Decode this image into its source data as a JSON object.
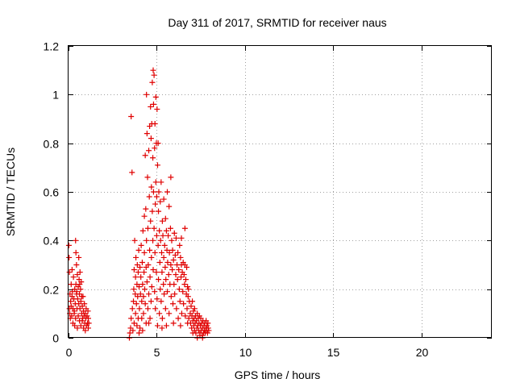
{
  "chart_data": {
    "type": "scatter",
    "title": "Day 311 of 2017, SRMTID for receiver naus",
    "xlabel": "GPS time / hours",
    "ylabel": "SRMTID / TECUs",
    "xlim": [
      0,
      24
    ],
    "ylim": [
      0,
      1.2
    ],
    "x_ticks": [
      0,
      5,
      10,
      15,
      20
    ],
    "y_ticks": [
      0,
      0.2,
      0.4,
      0.6,
      0.8,
      1,
      1.2
    ],
    "x_tick_labels": [
      "0",
      "5",
      "10",
      "15",
      "20"
    ],
    "y_tick_labels": [
      "0",
      "0.2",
      "0.4",
      "0.6",
      "0.8",
      "1",
      "1.2"
    ],
    "grid": true,
    "marker": "+",
    "series": [
      {
        "color": "#e00000",
        "points": [
          [
            0.02,
            0.38
          ],
          [
            0.03,
            0.33
          ],
          [
            0.05,
            0.27
          ],
          [
            0.05,
            0.12
          ],
          [
            0.07,
            0.1
          ],
          [
            0.08,
            0.18
          ],
          [
            0.1,
            0.08
          ],
          [
            0.12,
            0.15
          ],
          [
            0.15,
            0.22
          ],
          [
            0.15,
            0.13
          ],
          [
            0.18,
            0.09
          ],
          [
            0.2,
            0.28
          ],
          [
            0.22,
            0.19
          ],
          [
            0.25,
            0.12
          ],
          [
            0.25,
            0.06
          ],
          [
            0.28,
            0.25
          ],
          [
            0.3,
            0.16
          ],
          [
            0.32,
            0.1
          ],
          [
            0.35,
            0.2
          ],
          [
            0.35,
            0.05
          ],
          [
            0.38,
            0.14
          ],
          [
            0.4,
            0.4
          ],
          [
            0.4,
            0.08
          ],
          [
            0.42,
            0.35
          ],
          [
            0.42,
            0.22
          ],
          [
            0.45,
            0.3
          ],
          [
            0.45,
            0.18
          ],
          [
            0.48,
            0.12
          ],
          [
            0.5,
            0.26
          ],
          [
            0.5,
            0.04
          ],
          [
            0.52,
            0.16
          ],
          [
            0.55,
            0.21
          ],
          [
            0.55,
            0.09
          ],
          [
            0.58,
            0.33
          ],
          [
            0.58,
            0.14
          ],
          [
            0.6,
            0.24
          ],
          [
            0.62,
            0.18
          ],
          [
            0.62,
            0.07
          ],
          [
            0.65,
            0.27
          ],
          [
            0.65,
            0.12
          ],
          [
            0.68,
            0.2
          ],
          [
            0.7,
            0.15
          ],
          [
            0.7,
            0.05
          ],
          [
            0.72,
            0.23
          ],
          [
            0.75,
            0.17
          ],
          [
            0.75,
            0.1
          ],
          [
            0.78,
            0.13
          ],
          [
            0.8,
            0.08
          ],
          [
            0.82,
            0.17
          ],
          [
            0.85,
            0.11
          ],
          [
            0.85,
            0.04
          ],
          [
            0.88,
            0.09
          ],
          [
            0.9,
            0.14
          ],
          [
            0.92,
            0.06
          ],
          [
            0.95,
            0.1
          ],
          [
            0.95,
            0.03
          ],
          [
            0.98,
            0.08
          ],
          [
            1.0,
            0.12
          ],
          [
            1.02,
            0.05
          ],
          [
            1.05,
            0.09
          ],
          [
            1.08,
            0.06
          ],
          [
            1.1,
            0.11
          ],
          [
            1.12,
            0.04
          ],
          [
            1.12,
            0.08
          ],
          [
            1.15,
            0.06
          ],
          [
            0.2,
            0.17
          ],
          [
            0.33,
            0.11
          ],
          [
            0.47,
            0.19
          ],
          [
            0.63,
            0.22
          ],
          [
            0.78,
            0.07
          ],
          [
            3.45,
            0.0
          ],
          [
            3.48,
            0.02
          ],
          [
            3.52,
            0.04
          ],
          [
            3.55,
            0.91
          ],
          [
            3.55,
            0.08
          ],
          [
            3.6,
            0.68
          ],
          [
            3.62,
            0.12
          ],
          [
            3.65,
            0.03
          ],
          [
            3.68,
            0.15
          ],
          [
            3.7,
            0.2
          ],
          [
            3.72,
            0.28
          ],
          [
            3.72,
            0.06
          ],
          [
            3.75,
            0.4
          ],
          [
            3.78,
            0.18
          ],
          [
            3.8,
            0.25
          ],
          [
            3.8,
            0.1
          ],
          [
            3.82,
            0.33
          ],
          [
            3.85,
            0.14
          ],
          [
            3.88,
            0.22
          ],
          [
            3.88,
            0.05
          ],
          [
            3.9,
            0.3
          ],
          [
            3.92,
            0.17
          ],
          [
            3.95,
            0.27
          ],
          [
            3.95,
            0.08
          ],
          [
            3.98,
            0.36
          ],
          [
            4.0,
            0.21
          ],
          [
            4.02,
            0.12
          ],
          [
            4.05,
            0.29
          ],
          [
            4.05,
            0.04
          ],
          [
            4.08,
            0.18
          ],
          [
            4.1,
            0.25
          ],
          [
            4.12,
            0.38
          ],
          [
            4.15,
            0.15
          ],
          [
            4.15,
            0.08
          ],
          [
            4.18,
            0.31
          ],
          [
            4.2,
            0.22
          ],
          [
            4.22,
            0.44
          ],
          [
            4.25,
            0.17
          ],
          [
            4.25,
            0.1
          ],
          [
            4.28,
            0.27
          ],
          [
            4.3,
            0.5
          ],
          [
            4.3,
            0.35
          ],
          [
            4.32,
            0.2
          ],
          [
            4.35,
            0.75
          ],
          [
            4.35,
            0.14
          ],
          [
            4.38,
            0.53
          ],
          [
            4.4,
            0.29
          ],
          [
            4.4,
            0.06
          ],
          [
            4.42,
            1.0
          ],
          [
            4.42,
            0.4
          ],
          [
            4.45,
            0.84
          ],
          [
            4.45,
            0.23
          ],
          [
            4.48,
            0.66
          ],
          [
            4.5,
            0.45
          ],
          [
            4.5,
            0.12
          ],
          [
            4.52,
            0.3
          ],
          [
            4.55,
            0.77
          ],
          [
            4.55,
            0.18
          ],
          [
            4.58,
            0.58
          ],
          [
            4.6,
            0.87
          ],
          [
            4.6,
            0.36
          ],
          [
            4.62,
            0.25
          ],
          [
            4.62,
            0.08
          ],
          [
            4.65,
            0.95
          ],
          [
            4.65,
            0.48
          ],
          [
            4.68,
            0.82
          ],
          [
            4.68,
            0.15
          ],
          [
            4.7,
            0.62
          ],
          [
            4.7,
            0.33
          ],
          [
            4.72,
            0.88
          ],
          [
            4.72,
            0.21
          ],
          [
            4.75,
            1.05
          ],
          [
            4.75,
            0.52
          ],
          [
            4.78,
            0.74
          ],
          [
            4.78,
            0.4
          ],
          [
            4.8,
            1.1
          ],
          [
            4.8,
            0.28
          ],
          [
            4.82,
            0.96
          ],
          [
            4.82,
            0.6
          ],
          [
            4.85,
            1.08
          ],
          [
            4.85,
            0.45
          ],
          [
            4.88,
            0.78
          ],
          [
            4.88,
            0.19
          ],
          [
            4.9,
            0.88
          ],
          [
            4.9,
            0.35
          ],
          [
            4.92,
            0.55
          ],
          [
            4.92,
            0.12
          ],
          [
            4.95,
            0.99
          ],
          [
            4.95,
            0.64
          ],
          [
            4.98,
            0.8
          ],
          [
            4.98,
            0.27
          ],
          [
            5.0,
            0.58
          ],
          [
            5.0,
            0.42
          ],
          [
            5.02,
            0.94
          ],
          [
            5.02,
            0.16
          ],
          [
            5.05,
            0.71
          ],
          [
            5.05,
            0.05
          ],
          [
            5.08,
            0.8
          ],
          [
            5.08,
            0.38
          ],
          [
            5.1,
            0.52
          ],
          [
            5.1,
            0.24
          ],
          [
            5.12,
            0.6
          ],
          [
            5.15,
            0.44
          ],
          [
            5.15,
            0.1
          ],
          [
            5.18,
            0.31
          ],
          [
            5.2,
            0.56
          ],
          [
            5.2,
            0.2
          ],
          [
            5.22,
            0.4
          ],
          [
            5.25,
            0.64
          ],
          [
            5.25,
            0.15
          ],
          [
            5.28,
            0.35
          ],
          [
            5.3,
            0.27
          ],
          [
            5.32,
            0.48
          ],
          [
            5.32,
            0.08
          ],
          [
            5.35,
            0.42
          ],
          [
            5.38,
            0.22
          ],
          [
            5.4,
            0.57
          ],
          [
            5.4,
            0.33
          ],
          [
            5.42,
            0.18
          ],
          [
            5.45,
            0.38
          ],
          [
            5.48,
            0.29
          ],
          [
            5.5,
            0.49
          ],
          [
            5.5,
            0.12
          ],
          [
            5.52,
            0.24
          ],
          [
            5.55,
            0.44
          ],
          [
            5.58,
            0.36
          ],
          [
            5.6,
            0.19
          ],
          [
            5.6,
            0.6
          ],
          [
            5.62,
            0.31
          ],
          [
            5.65,
            0.42
          ],
          [
            5.68,
            0.26
          ],
          [
            5.7,
            0.54
          ],
          [
            5.7,
            0.1
          ],
          [
            5.72,
            0.35
          ],
          [
            5.75,
            0.22
          ],
          [
            5.78,
            0.45
          ],
          [
            5.8,
            0.3
          ],
          [
            5.8,
            0.66
          ],
          [
            5.82,
            0.17
          ],
          [
            5.85,
            0.4
          ],
          [
            5.88,
            0.28
          ],
          [
            5.9,
            0.36
          ],
          [
            5.92,
            0.14
          ],
          [
            5.95,
            0.32
          ],
          [
            5.98,
            0.22
          ],
          [
            6.0,
            0.43
          ],
          [
            6.02,
            0.18
          ],
          [
            6.05,
            0.34
          ],
          [
            6.08,
            0.26
          ],
          [
            6.1,
            0.41
          ],
          [
            6.12,
            0.12
          ],
          [
            6.15,
            0.3
          ],
          [
            6.18,
            0.24
          ],
          [
            6.2,
            0.35
          ],
          [
            6.22,
            0.08
          ],
          [
            6.25,
            0.28
          ],
          [
            6.28,
            0.2
          ],
          [
            6.3,
            0.38
          ],
          [
            6.32,
            0.15
          ],
          [
            6.35,
            0.33
          ],
          [
            6.38,
            0.25
          ],
          [
            6.4,
            0.3
          ],
          [
            6.42,
            0.1
          ],
          [
            6.45,
            0.27
          ],
          [
            6.48,
            0.19
          ],
          [
            6.5,
            0.31
          ],
          [
            6.52,
            0.14
          ],
          [
            6.55,
            0.26
          ],
          [
            6.58,
            0.22
          ],
          [
            6.6,
            0.3
          ],
          [
            6.62,
            0.09
          ],
          [
            6.65,
            0.24
          ],
          [
            6.68,
            0.18
          ],
          [
            6.7,
            0.29
          ],
          [
            6.72,
            0.12
          ],
          [
            6.75,
            0.21
          ],
          [
            6.78,
            0.17
          ],
          [
            6.8,
            0.2
          ],
          [
            6.82,
            0.08
          ],
          [
            6.85,
            0.15
          ],
          [
            5.55,
            0.05
          ],
          [
            5.95,
            0.06
          ],
          [
            6.35,
            0.05
          ],
          [
            6.75,
            0.06
          ],
          [
            4.2,
            0.03
          ],
          [
            4.55,
            0.06
          ],
          [
            5.3,
            0.04
          ],
          [
            4.0,
            0.02
          ],
          [
            6.6,
            0.45
          ],
          [
            6.4,
            0.41
          ],
          [
            6.9,
            0.1
          ],
          [
            6.92,
            0.06
          ],
          [
            6.95,
            0.13
          ],
          [
            6.98,
            0.04
          ],
          [
            7.0,
            0.09
          ],
          [
            7.02,
            0.15
          ],
          [
            7.05,
            0.07
          ],
          [
            7.05,
            0.02
          ],
          [
            7.08,
            0.11
          ],
          [
            7.1,
            0.05
          ],
          [
            7.12,
            0.08
          ],
          [
            7.15,
            0.03
          ],
          [
            7.15,
            0.12
          ],
          [
            7.18,
            0.06
          ],
          [
            7.2,
            0.09
          ],
          [
            7.22,
            0.02
          ],
          [
            7.25,
            0.07
          ],
          [
            7.28,
            0.04
          ],
          [
            7.3,
            0.1
          ],
          [
            7.32,
            0.05
          ],
          [
            7.35,
            0.08
          ],
          [
            7.38,
            0.03
          ],
          [
            7.4,
            0.06
          ],
          [
            7.42,
            0.09
          ],
          [
            7.45,
            0.02
          ],
          [
            7.48,
            0.05
          ],
          [
            7.5,
            0.08
          ],
          [
            7.52,
            0.03
          ],
          [
            7.55,
            0.06
          ],
          [
            7.58,
            0.01
          ],
          [
            7.6,
            0.04
          ],
          [
            7.62,
            0.07
          ],
          [
            7.65,
            0.02
          ],
          [
            7.68,
            0.05
          ],
          [
            7.7,
            0.03
          ],
          [
            7.72,
            0.06
          ],
          [
            7.75,
            0.02
          ],
          [
            7.78,
            0.04
          ],
          [
            7.8,
            0.07
          ],
          [
            7.82,
            0.03
          ],
          [
            7.85,
            0.05
          ],
          [
            7.88,
            0.02
          ],
          [
            7.9,
            0.06
          ],
          [
            7.92,
            0.04
          ],
          [
            7.95,
            0.03
          ],
          [
            7.3,
            0.0
          ],
          [
            7.45,
            0.01
          ],
          [
            7.6,
            0.0
          ]
        ]
      }
    ]
  }
}
